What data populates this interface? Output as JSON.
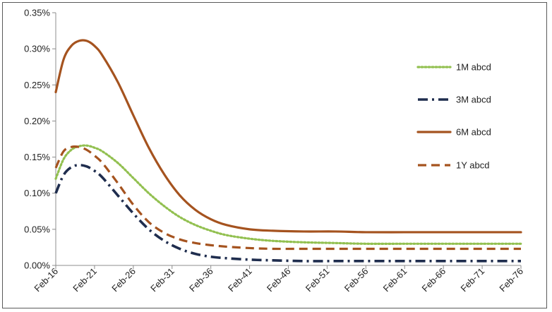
{
  "chart_data": {
    "type": "line",
    "title": "",
    "xlabel": "",
    "ylabel": "",
    "x_ticks": [
      "Feb-16",
      "Feb-21",
      "Feb-26",
      "Feb-31",
      "Feb-36",
      "Feb-41",
      "Feb-46",
      "Feb-51",
      "Feb-56",
      "Feb-61",
      "Feb-66",
      "Feb-71",
      "Feb-76"
    ],
    "x_range": [
      0,
      60
    ],
    "ylim": [
      0,
      0.35
    ],
    "y_ticks": [
      0,
      0.05,
      0.1,
      0.15,
      0.2,
      0.25,
      0.3,
      0.35
    ],
    "y_tick_labels": [
      "0.00%",
      "0.05%",
      "0.10%",
      "0.15%",
      "0.20%",
      "0.25%",
      "0.30%",
      "0.35%"
    ],
    "grid": false,
    "legend_position": "right",
    "series": [
      {
        "name": "1M abcd",
        "color": "#92c050",
        "style": "dotted",
        "x": [
          0,
          1,
          2,
          3,
          4,
          5,
          6,
          8,
          10,
          12,
          14,
          16,
          18,
          20,
          22,
          25,
          28,
          32,
          36,
          40,
          45,
          50,
          55,
          60
        ],
        "y": [
          0.12,
          0.147,
          0.16,
          0.165,
          0.166,
          0.163,
          0.158,
          0.142,
          0.121,
          0.1,
          0.082,
          0.067,
          0.056,
          0.048,
          0.042,
          0.037,
          0.034,
          0.032,
          0.031,
          0.03,
          0.03,
          0.03,
          0.03,
          0.03
        ]
      },
      {
        "name": "3M abcd",
        "color": "#1f2d4e",
        "style": "dash-dot",
        "x": [
          0,
          1,
          2,
          3,
          4,
          5,
          6,
          8,
          10,
          12,
          14,
          16,
          18,
          20,
          22,
          25,
          28,
          32,
          36,
          40,
          45,
          50,
          55,
          60
        ],
        "y": [
          0.1,
          0.125,
          0.136,
          0.139,
          0.137,
          0.131,
          0.122,
          0.097,
          0.072,
          0.05,
          0.034,
          0.023,
          0.016,
          0.012,
          0.01,
          0.008,
          0.007,
          0.006,
          0.006,
          0.006,
          0.006,
          0.006,
          0.006,
          0.006
        ]
      },
      {
        "name": "6M abcd",
        "color": "#a5531f",
        "style": "solid",
        "x": [
          0,
          1,
          2,
          3,
          4,
          5,
          6,
          8,
          10,
          12,
          14,
          16,
          18,
          20,
          22,
          25,
          28,
          32,
          36,
          40,
          45,
          50,
          55,
          60
        ],
        "y": [
          0.24,
          0.285,
          0.304,
          0.311,
          0.311,
          0.304,
          0.291,
          0.254,
          0.208,
          0.163,
          0.126,
          0.097,
          0.077,
          0.064,
          0.056,
          0.05,
          0.048,
          0.047,
          0.047,
          0.046,
          0.046,
          0.046,
          0.046,
          0.046
        ]
      },
      {
        "name": "1Y abcd",
        "color": "#a5531f",
        "style": "dashed",
        "x": [
          0,
          1,
          2,
          3,
          4,
          5,
          6,
          8,
          10,
          12,
          14,
          16,
          18,
          20,
          22,
          25,
          28,
          32,
          36,
          40,
          45,
          50,
          55,
          60
        ],
        "y": [
          0.135,
          0.158,
          0.164,
          0.164,
          0.16,
          0.152,
          0.142,
          0.114,
          0.084,
          0.06,
          0.045,
          0.036,
          0.031,
          0.028,
          0.026,
          0.024,
          0.023,
          0.023,
          0.023,
          0.023,
          0.023,
          0.023,
          0.023,
          0.023
        ]
      }
    ]
  }
}
